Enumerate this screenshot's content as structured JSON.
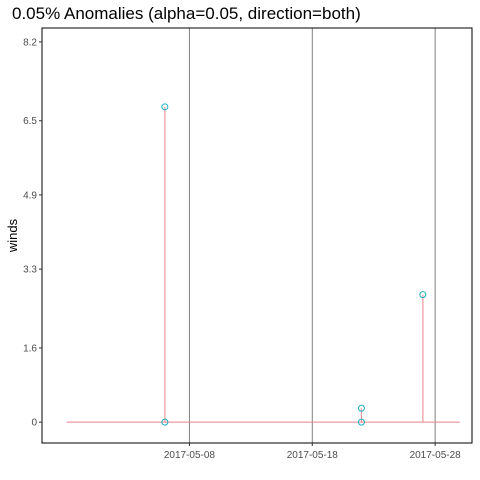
{
  "chart_data": {
    "type": "line",
    "title": "0.05% Anomalies (alpha=0.05, direction=both)",
    "xlabel": "",
    "ylabel": "winds",
    "ylim": [
      -0.45,
      8.5
    ],
    "xlim": [
      "2017-04-27",
      "2017-06-01"
    ],
    "y_ticks": [
      "0",
      "1.6",
      "3.3",
      "4.9",
      "6.5",
      "8.2"
    ],
    "y_tick_values": [
      0,
      1.6,
      3.3,
      4.9,
      6.5,
      8.2
    ],
    "x_ticks": [
      "2017-05-08",
      "2017-05-18",
      "2017-05-28"
    ],
    "vertical_lines": [
      "2017-05-09",
      "2017-05-19",
      "2017-05-29"
    ],
    "series": [
      {
        "x": [
          "2017-04-29",
          "2017-05-07",
          "2017-05-07",
          "2017-05-07",
          "2017-05-23",
          "2017-05-23",
          "2017-05-23",
          "2017-05-28",
          "2017-05-28",
          "2017-05-28",
          "2017-05-31"
        ],
        "values": [
          0,
          0,
          6.8,
          0,
          0,
          0.3,
          0,
          0,
          2.75,
          0,
          0
        ]
      }
    ],
    "anomalies": {
      "x": [
        "2017-05-07",
        "2017-05-07",
        "2017-05-23",
        "2017-05-23",
        "2017-05-28"
      ],
      "values": [
        6.8,
        0,
        0.3,
        0,
        2.75
      ]
    },
    "grid": false,
    "colors": {
      "line": "#e8838a",
      "anomaly": "#17b0c0",
      "vline": "#7f7f7f",
      "axis": "#000000"
    }
  }
}
